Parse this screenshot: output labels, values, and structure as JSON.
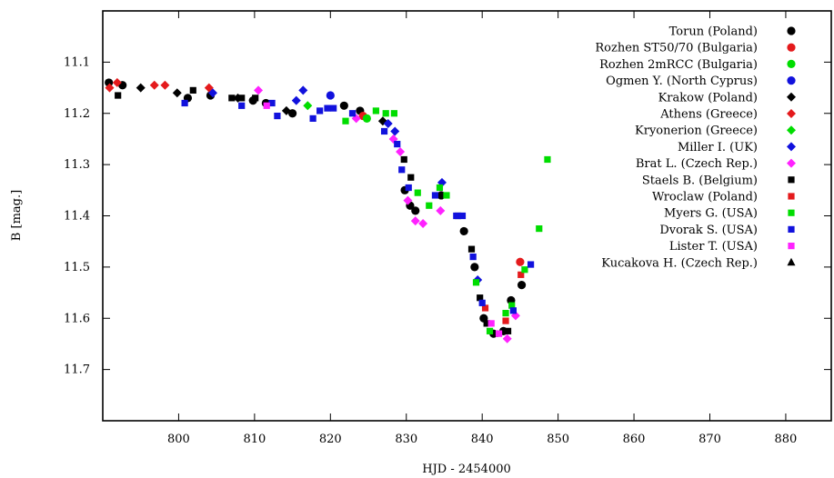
{
  "chart_data": {
    "type": "scatter",
    "title": "",
    "xlabel": "HJD - 2454000",
    "ylabel": "B [mag.]",
    "xlim": [
      790,
      886
    ],
    "ylim": [
      11.8,
      11.0
    ],
    "y_axis_inverted": true,
    "x_ticks": [
      "800",
      "810",
      "820",
      "830",
      "840",
      "850",
      "860",
      "870",
      "880"
    ],
    "y_ticks": [
      "11.1",
      "11.2",
      "11.3",
      "11.4",
      "11.5",
      "11.6",
      "11.7"
    ],
    "grid": false,
    "legend_position": "top-right",
    "series": [
      {
        "name": "Torun (Poland)",
        "marker": "circle",
        "color": "#000000",
        "points": [
          [
            790.8,
            11.14
          ],
          [
            792.6,
            11.145
          ],
          [
            801.2,
            11.17
          ],
          [
            804.2,
            11.165
          ],
          [
            809.8,
            11.175
          ],
          [
            811.5,
            11.18
          ],
          [
            815,
            11.2
          ],
          [
            821.8,
            11.185
          ],
          [
            823.9,
            11.195
          ],
          [
            829.8,
            11.35
          ],
          [
            830.5,
            11.38
          ],
          [
            831.2,
            11.39
          ],
          [
            834.6,
            11.36
          ],
          [
            837.6,
            11.43
          ],
          [
            839,
            11.5
          ],
          [
            840.2,
            11.6
          ],
          [
            841.5,
            11.63
          ],
          [
            842.8,
            11.625
          ],
          [
            843.8,
            11.565
          ],
          [
            845.2,
            11.535
          ]
        ]
      },
      {
        "name": "Rozhen ST50/70 (Bulgaria)",
        "marker": "circle",
        "color": "#e41a1c",
        "points": [
          [
            824.3,
            11.205
          ],
          [
            845,
            11.49
          ]
        ]
      },
      {
        "name": "Rozhen 2mRCC (Bulgaria)",
        "marker": "circle",
        "color": "#00dd00",
        "points": [
          [
            824.8,
            11.21
          ]
        ]
      },
      {
        "name": "Ogmen Y. (North Cyprus)",
        "marker": "circle",
        "color": "#1111dd",
        "points": [
          [
            820,
            11.165
          ]
        ]
      },
      {
        "name": "Krakow (Poland)",
        "marker": "diamond",
        "color": "#000000",
        "points": [
          [
            795,
            11.15
          ],
          [
            799.8,
            11.16
          ],
          [
            807.8,
            11.17
          ],
          [
            814.2,
            11.195
          ],
          [
            826.9,
            11.215
          ]
        ]
      },
      {
        "name": "Athens (Greece)",
        "marker": "diamond",
        "color": "#e41a1c",
        "points": [
          [
            790.9,
            11.15
          ],
          [
            791.9,
            11.14
          ],
          [
            796.8,
            11.145
          ],
          [
            798.2,
            11.145
          ],
          [
            804,
            11.15
          ]
        ]
      },
      {
        "name": "Kryonerion (Greece)",
        "marker": "diamond",
        "color": "#00dd00",
        "points": [
          [
            817,
            11.185
          ]
        ]
      },
      {
        "name": "Miller I. (UK)",
        "marker": "diamond",
        "color": "#1111dd",
        "points": [
          [
            804.5,
            11.16
          ],
          [
            815.5,
            11.175
          ],
          [
            816.4,
            11.155
          ],
          [
            827.6,
            11.22
          ],
          [
            828.5,
            11.235
          ],
          [
            834.7,
            11.335
          ],
          [
            839.4,
            11.525
          ]
        ]
      },
      {
        "name": "Brat L. (Czech Rep.)",
        "marker": "diamond",
        "color": "#ff22ff",
        "points": [
          [
            810.5,
            11.155
          ],
          [
            823.4,
            11.21
          ],
          [
            828.3,
            11.25
          ],
          [
            829.2,
            11.275
          ],
          [
            830.2,
            11.37
          ],
          [
            831.2,
            11.41
          ],
          [
            832.2,
            11.415
          ],
          [
            834.5,
            11.39
          ],
          [
            843.3,
            11.64
          ],
          [
            844.4,
            11.595
          ]
        ]
      },
      {
        "name": "Staels B. (Belgium)",
        "marker": "square",
        "color": "#000000",
        "points": [
          [
            792,
            11.165
          ],
          [
            801.9,
            11.155
          ],
          [
            807,
            11.17
          ],
          [
            808.3,
            11.17
          ],
          [
            810.1,
            11.17
          ],
          [
            829.7,
            11.29
          ],
          [
            830.6,
            11.325
          ],
          [
            836.8,
            11.4
          ],
          [
            838.6,
            11.465
          ],
          [
            839.7,
            11.56
          ],
          [
            840.6,
            11.61
          ],
          [
            841.7,
            11.63
          ],
          [
            843.4,
            11.625
          ]
        ]
      },
      {
        "name": "Wroclaw (Poland)",
        "marker": "square",
        "color": "#e41a1c",
        "points": [
          [
            840.4,
            11.58
          ],
          [
            843.1,
            11.605
          ],
          [
            845.1,
            11.515
          ]
        ]
      },
      {
        "name": "Myers G. (USA)",
        "marker": "square",
        "color": "#00dd00",
        "points": [
          [
            822,
            11.215
          ],
          [
            826,
            11.195
          ],
          [
            827.3,
            11.2
          ],
          [
            828.4,
            11.2
          ],
          [
            831.5,
            11.355
          ],
          [
            833,
            11.38
          ],
          [
            834.4,
            11.345
          ],
          [
            835.3,
            11.36
          ],
          [
            839.2,
            11.53
          ],
          [
            841,
            11.625
          ],
          [
            843.1,
            11.59
          ],
          [
            843.9,
            11.575
          ],
          [
            845.6,
            11.505
          ],
          [
            847.5,
            11.425
          ],
          [
            848.6,
            11.29
          ]
        ]
      },
      {
        "name": "Dvorak S. (USA)",
        "marker": "square",
        "color": "#1111dd",
        "points": [
          [
            800.8,
            11.18
          ],
          [
            808.3,
            11.185
          ],
          [
            812.3,
            11.18
          ],
          [
            813,
            11.205
          ],
          [
            817.7,
            11.21
          ],
          [
            818.6,
            11.195
          ],
          [
            819.6,
            11.19
          ],
          [
            820.4,
            11.19
          ],
          [
            822.9,
            11.2
          ],
          [
            827.1,
            11.235
          ],
          [
            828.8,
            11.26
          ],
          [
            829.4,
            11.31
          ],
          [
            830.3,
            11.345
          ],
          [
            833.8,
            11.36
          ],
          [
            836.6,
            11.4
          ],
          [
            837.4,
            11.4
          ],
          [
            838.8,
            11.48
          ],
          [
            840,
            11.57
          ],
          [
            844.1,
            11.585
          ],
          [
            846.4,
            11.495
          ]
        ]
      },
      {
        "name": "Lister T. (USA)",
        "marker": "square",
        "color": "#ff22ff",
        "points": [
          [
            811.6,
            11.185
          ],
          [
            841.2,
            11.61
          ],
          [
            842.2,
            11.63
          ]
        ]
      },
      {
        "name": "Kucakova H. (Czech Rep.)",
        "marker": "triangle",
        "color": "#000000",
        "points": []
      }
    ]
  }
}
